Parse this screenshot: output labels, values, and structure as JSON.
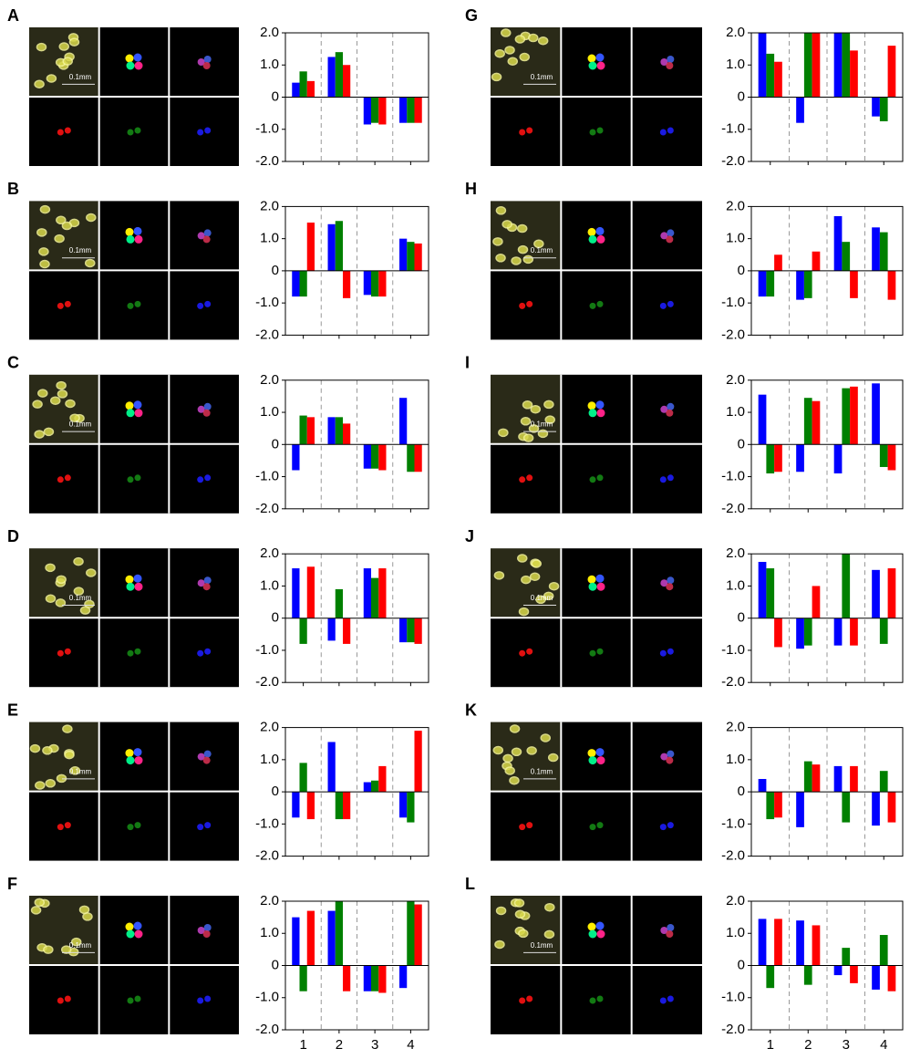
{
  "chart_data": [
    {
      "type": "bar",
      "panel": "A",
      "scale_label": "0.1mm",
      "categories": [
        null,
        null,
        null,
        null
      ],
      "ylim": [
        -2,
        2
      ],
      "yticks": [
        {
          "value": 2,
          "label": "2.0"
        },
        {
          "value": 1,
          "label": "1.0"
        },
        0,
        {
          "value": -1,
          "label": "-1.0"
        },
        {
          "value": -2,
          "label": "-2.0"
        }
      ],
      "series": [
        {
          "color": "#0000ff",
          "values": [
            0.45,
            1.25,
            -0.85,
            -0.8
          ]
        },
        {
          "color": "#008000",
          "values": [
            0.8,
            1.4,
            -0.8,
            -0.8
          ]
        },
        {
          "color": "#ff0000",
          "values": [
            0.5,
            1.0,
            -0.85,
            -0.8
          ]
        }
      ]
    },
    {
      "type": "bar",
      "panel": "B",
      "scale_label": "0.1mm",
      "categories": [
        null,
        null,
        null,
        null
      ],
      "ylim": [
        -2,
        2
      ],
      "yticks": [
        {
          "value": 2,
          "label": "2.0"
        },
        {
          "value": 1,
          "label": "1.0"
        },
        0,
        {
          "value": -1,
          "label": "-1.0"
        },
        {
          "value": -2,
          "label": "-2.0"
        }
      ],
      "series": [
        {
          "color": "#0000ff",
          "values": [
            -0.8,
            1.45,
            -0.75,
            1.0
          ]
        },
        {
          "color": "#008000",
          "values": [
            -0.8,
            1.55,
            -0.8,
            0.9
          ]
        },
        {
          "color": "#ff0000",
          "values": [
            1.5,
            -0.85,
            -0.8,
            0.85
          ]
        }
      ]
    },
    {
      "type": "bar",
      "panel": "C",
      "scale_label": "0.1mm",
      "categories": [
        null,
        null,
        null,
        null
      ],
      "ylim": [
        -2,
        2
      ],
      "yticks": [
        {
          "value": 2,
          "label": "2.0"
        },
        {
          "value": 1,
          "label": "1.0"
        },
        0,
        {
          "value": -1,
          "label": "-1.0"
        },
        {
          "value": -2,
          "label": "-2.0"
        }
      ],
      "series": [
        {
          "color": "#0000ff",
          "values": [
            -0.8,
            0.85,
            -0.75,
            1.45
          ]
        },
        {
          "color": "#008000",
          "values": [
            0.9,
            0.85,
            -0.75,
            -0.85
          ]
        },
        {
          "color": "#ff0000",
          "values": [
            0.85,
            0.65,
            -0.8,
            -0.85
          ]
        }
      ]
    },
    {
      "type": "bar",
      "panel": "D",
      "scale_label": "0.1mm",
      "categories": [
        null,
        null,
        null,
        null
      ],
      "ylim": [
        -2,
        2
      ],
      "yticks": [
        {
          "value": 2,
          "label": "2.0"
        },
        {
          "value": 1,
          "label": "1.0"
        },
        0,
        {
          "value": -1,
          "label": "-1.0"
        },
        {
          "value": -2,
          "label": "-2.0"
        }
      ],
      "series": [
        {
          "color": "#0000ff",
          "values": [
            1.55,
            -0.7,
            1.55,
            -0.75
          ]
        },
        {
          "color": "#008000",
          "values": [
            -0.8,
            0.9,
            1.25,
            -0.75
          ]
        },
        {
          "color": "#ff0000",
          "values": [
            1.6,
            -0.8,
            1.55,
            -0.8
          ]
        }
      ]
    },
    {
      "type": "bar",
      "panel": "E",
      "scale_label": "0.1mm",
      "categories": [
        null,
        null,
        null,
        null
      ],
      "ylim": [
        -2,
        2
      ],
      "yticks": [
        {
          "value": 2,
          "label": "2.0"
        },
        {
          "value": 1,
          "label": "1.0"
        },
        0,
        {
          "value": -1,
          "label": "-1.0"
        },
        {
          "value": -2,
          "label": "-2.0"
        }
      ],
      "series": [
        {
          "color": "#0000ff",
          "values": [
            -0.8,
            1.55,
            0.3,
            -0.8
          ]
        },
        {
          "color": "#008000",
          "values": [
            0.9,
            -0.85,
            0.35,
            -0.95
          ]
        },
        {
          "color": "#ff0000",
          "values": [
            -0.85,
            -0.85,
            0.8,
            1.9
          ]
        }
      ]
    },
    {
      "type": "bar",
      "panel": "F",
      "scale_label": "0.1mm",
      "categories": [
        "1",
        "2",
        "3",
        "4"
      ],
      "ylim": [
        -2,
        2
      ],
      "yticks": [
        {
          "value": 2,
          "label": "2.0"
        },
        {
          "value": 1,
          "label": "1.0"
        },
        0,
        {
          "value": -1,
          "label": "-1.0"
        },
        {
          "value": -2,
          "label": "-2.0"
        }
      ],
      "series": [
        {
          "color": "#0000ff",
          "values": [
            1.5,
            1.7,
            -0.8,
            -0.7
          ]
        },
        {
          "color": "#008000",
          "values": [
            -0.8,
            2.0,
            -0.8,
            2.0
          ]
        },
        {
          "color": "#ff0000",
          "values": [
            1.7,
            -0.8,
            -0.85,
            1.9
          ]
        }
      ]
    },
    {
      "type": "bar",
      "panel": "G",
      "scale_label": "0.1mm",
      "categories": [
        null,
        null,
        null,
        null
      ],
      "ylim": [
        -2,
        2
      ],
      "yticks": [
        {
          "value": 2,
          "label": "2.0"
        },
        {
          "value": 1,
          "label": "1.0"
        },
        0,
        {
          "value": -1,
          "label": "-1.0"
        },
        {
          "value": -2,
          "label": "-2.0"
        }
      ],
      "series": [
        {
          "color": "#0000ff",
          "values": [
            2.0,
            -0.8,
            2.0,
            -0.6
          ]
        },
        {
          "color": "#008000",
          "values": [
            1.35,
            2.0,
            2.0,
            -0.75
          ]
        },
        {
          "color": "#ff0000",
          "values": [
            1.1,
            2.0,
            1.45,
            1.6
          ]
        }
      ]
    },
    {
      "type": "bar",
      "panel": "H",
      "scale_label": "0.1mm",
      "categories": [
        null,
        null,
        null,
        null
      ],
      "ylim": [
        -2,
        2
      ],
      "yticks": [
        {
          "value": 2,
          "label": "2.0"
        },
        {
          "value": 1,
          "label": "1.0"
        },
        0,
        {
          "value": -1,
          "label": "-1.0"
        },
        {
          "value": -2,
          "label": "-2.0"
        }
      ],
      "series": [
        {
          "color": "#0000ff",
          "values": [
            -0.8,
            -0.9,
            1.7,
            1.35
          ]
        },
        {
          "color": "#008000",
          "values": [
            -0.8,
            -0.85,
            0.9,
            1.2
          ]
        },
        {
          "color": "#ff0000",
          "values": [
            0.5,
            0.6,
            -0.85,
            -0.9
          ]
        }
      ]
    },
    {
      "type": "bar",
      "panel": "I",
      "scale_label": "0.1mm",
      "categories": [
        null,
        null,
        null,
        null
      ],
      "ylim": [
        -2,
        2
      ],
      "yticks": [
        {
          "value": 2,
          "label": "2.0"
        },
        {
          "value": 1,
          "label": "1.0"
        },
        0,
        {
          "value": -1,
          "label": "-1.0"
        },
        {
          "value": -2,
          "label": "-2.0"
        }
      ],
      "series": [
        {
          "color": "#0000ff",
          "values": [
            1.55,
            -0.85,
            -0.9,
            1.9
          ]
        },
        {
          "color": "#008000",
          "values": [
            -0.9,
            1.45,
            1.75,
            -0.7
          ]
        },
        {
          "color": "#ff0000",
          "values": [
            -0.85,
            1.35,
            1.8,
            -0.8
          ]
        }
      ]
    },
    {
      "type": "bar",
      "panel": "J",
      "scale_label": "0.1mm",
      "categories": [
        null,
        null,
        null,
        null
      ],
      "ylim": [
        -2,
        2
      ],
      "yticks": [
        {
          "value": 2,
          "label": "2.0"
        },
        {
          "value": 1,
          "label": "1.0"
        },
        0,
        {
          "value": -1,
          "label": "-1.0"
        },
        {
          "value": -2,
          "label": "-2.0"
        }
      ],
      "series": [
        {
          "color": "#0000ff",
          "values": [
            1.75,
            -0.95,
            -0.85,
            1.5
          ]
        },
        {
          "color": "#008000",
          "values": [
            1.55,
            -0.85,
            2.0,
            -0.8
          ]
        },
        {
          "color": "#ff0000",
          "values": [
            -0.9,
            1.0,
            -0.85,
            1.55
          ]
        }
      ]
    },
    {
      "type": "bar",
      "panel": "K",
      "scale_label": "0.1mm",
      "categories": [
        null,
        null,
        null,
        null
      ],
      "ylim": [
        -2,
        2
      ],
      "yticks": [
        {
          "value": 2,
          "label": "2.0"
        },
        {
          "value": 1,
          "label": "1.0"
        },
        0,
        {
          "value": -1,
          "label": "-1.0"
        },
        {
          "value": -2,
          "label": "-2.0"
        }
      ],
      "series": [
        {
          "color": "#0000ff",
          "values": [
            0.4,
            -1.1,
            0.8,
            -1.05
          ]
        },
        {
          "color": "#008000",
          "values": [
            -0.85,
            0.95,
            -0.95,
            0.65
          ]
        },
        {
          "color": "#ff0000",
          "values": [
            -0.8,
            0.85,
            0.8,
            -0.95
          ]
        }
      ]
    },
    {
      "type": "bar",
      "panel": "L",
      "scale_label": "0.1mm",
      "categories": [
        "1",
        "2",
        "3",
        "4"
      ],
      "ylim": [
        -2,
        2
      ],
      "yticks": [
        {
          "value": 2,
          "label": "2.0"
        },
        {
          "value": 1,
          "label": "1.0"
        },
        0,
        {
          "value": -1,
          "label": "-1.0"
        },
        {
          "value": -2,
          "label": "-2.0"
        }
      ],
      "series": [
        {
          "color": "#0000ff",
          "values": [
            1.45,
            1.4,
            -0.3,
            -0.75
          ]
        },
        {
          "color": "#008000",
          "values": [
            -0.7,
            -0.6,
            0.55,
            0.95
          ]
        },
        {
          "color": "#ff0000",
          "values": [
            1.45,
            1.25,
            -0.55,
            -0.8
          ]
        }
      ]
    }
  ]
}
